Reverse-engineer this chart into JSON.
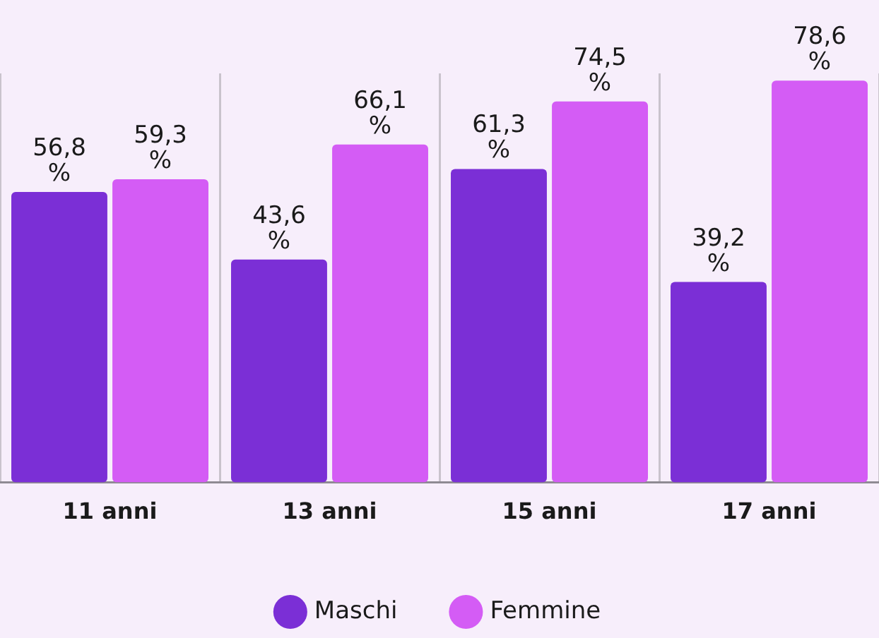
{
  "chart_data": {
    "type": "bar",
    "categories": [
      "11 anni",
      "13 anni",
      "15 anni",
      "17 anni"
    ],
    "series": [
      {
        "name": "Maschi",
        "color": "#7b2fd6",
        "values": [
          56.8,
          43.6,
          61.3,
          39.2
        ],
        "value_labels": [
          "56,8 %",
          "43,6 %",
          "61,3 %",
          "39,2 %"
        ]
      },
      {
        "name": "Femmine",
        "color": "#d45cf5",
        "values": [
          59.3,
          66.1,
          74.5,
          78.6
        ],
        "value_labels": [
          "59,3 %",
          "66,1 %",
          "74,5 %",
          "78,6 %"
        ]
      }
    ],
    "relative": false,
    "grid": "x",
    "legend": "bottom"
  }
}
